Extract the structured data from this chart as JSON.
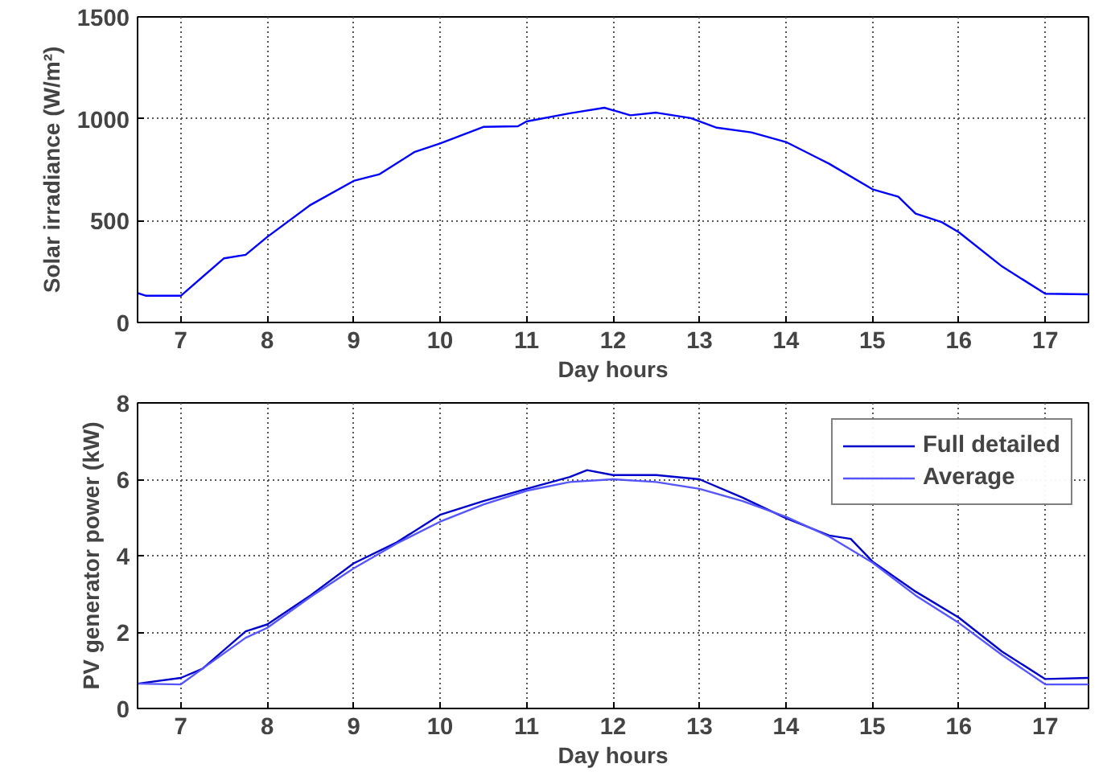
{
  "chart_data": [
    {
      "type": "line",
      "xlabel": "Day hours",
      "ylabel": "Solar irradiance (W/m²)",
      "xlim": [
        6.5,
        17.5
      ],
      "ylim": [
        0,
        1500
      ],
      "xticks": [
        7,
        8,
        9,
        10,
        11,
        12,
        13,
        14,
        15,
        16,
        17
      ],
      "yticks": [
        0,
        500,
        1000,
        1500
      ],
      "grid": true,
      "legend": false,
      "line_style": "solid",
      "series": [
        {
          "color": "#0000ff",
          "x": [
            6.5,
            6.6,
            7.0,
            7.5,
            7.75,
            8.0,
            8.5,
            9.0,
            9.3,
            9.7,
            10.0,
            10.5,
            10.9,
            11.0,
            11.5,
            11.9,
            12.2,
            12.5,
            12.9,
            13.2,
            13.6,
            14.0,
            14.5,
            15.0,
            15.3,
            15.5,
            15.8,
            16.0,
            16.5,
            17.0,
            17.5
          ],
          "values": [
            144,
            131,
            131,
            315,
            332,
            420,
            577,
            695,
            728,
            836,
            879,
            960,
            963,
            987,
            1027,
            1054,
            1017,
            1030,
            1003,
            956,
            933,
            886,
            779,
            654,
            617,
            534,
            493,
            443,
            275,
            141,
            138
          ]
        }
      ]
    },
    {
      "type": "line",
      "xlabel": "Day hours",
      "ylabel": "PV generator power (kW)",
      "xlim": [
        6.5,
        17.5
      ],
      "ylim": [
        0,
        8
      ],
      "xticks": [
        7,
        8,
        9,
        10,
        11,
        12,
        13,
        14,
        15,
        16,
        17
      ],
      "yticks": [
        0,
        2,
        4,
        6,
        8
      ],
      "grid": true,
      "legend": "top right",
      "line_style": "solid",
      "series": [
        {
          "name": "Full detailed",
          "color": "#0000cc",
          "x": [
            6.5,
            7.0,
            7.25,
            7.75,
            8.0,
            8.5,
            9.0,
            9.5,
            10.0,
            10.5,
            11.0,
            11.5,
            11.7,
            12.0,
            12.5,
            13.0,
            13.5,
            14.0,
            14.5,
            14.75,
            15.0,
            15.5,
            16.0,
            16.5,
            17.0,
            17.5
          ],
          "values": [
            0.65,
            0.8,
            1.04,
            2.02,
            2.2,
            2.96,
            3.8,
            4.35,
            5.07,
            5.43,
            5.75,
            6.06,
            6.24,
            6.11,
            6.11,
            6.0,
            5.52,
            4.98,
            4.53,
            4.44,
            3.85,
            3.06,
            2.38,
            1.49,
            0.77,
            0.8
          ]
        },
        {
          "name": "Average",
          "color": "#5555ff",
          "x": [
            6.5,
            7.0,
            7.25,
            7.75,
            8.0,
            8.5,
            9.0,
            9.5,
            10.0,
            10.5,
            11.0,
            11.5,
            12.0,
            12.5,
            13.0,
            13.5,
            14.0,
            14.5,
            15.0,
            15.5,
            16.0,
            16.5,
            17.0,
            17.5
          ],
          "values": [
            0.65,
            0.63,
            1.04,
            1.85,
            2.11,
            2.92,
            3.67,
            4.32,
            4.89,
            5.34,
            5.7,
            5.93,
            6.0,
            5.93,
            5.75,
            5.43,
            5.02,
            4.5,
            3.82,
            2.96,
            2.24,
            1.4,
            0.63,
            0.63
          ]
        }
      ]
    }
  ]
}
